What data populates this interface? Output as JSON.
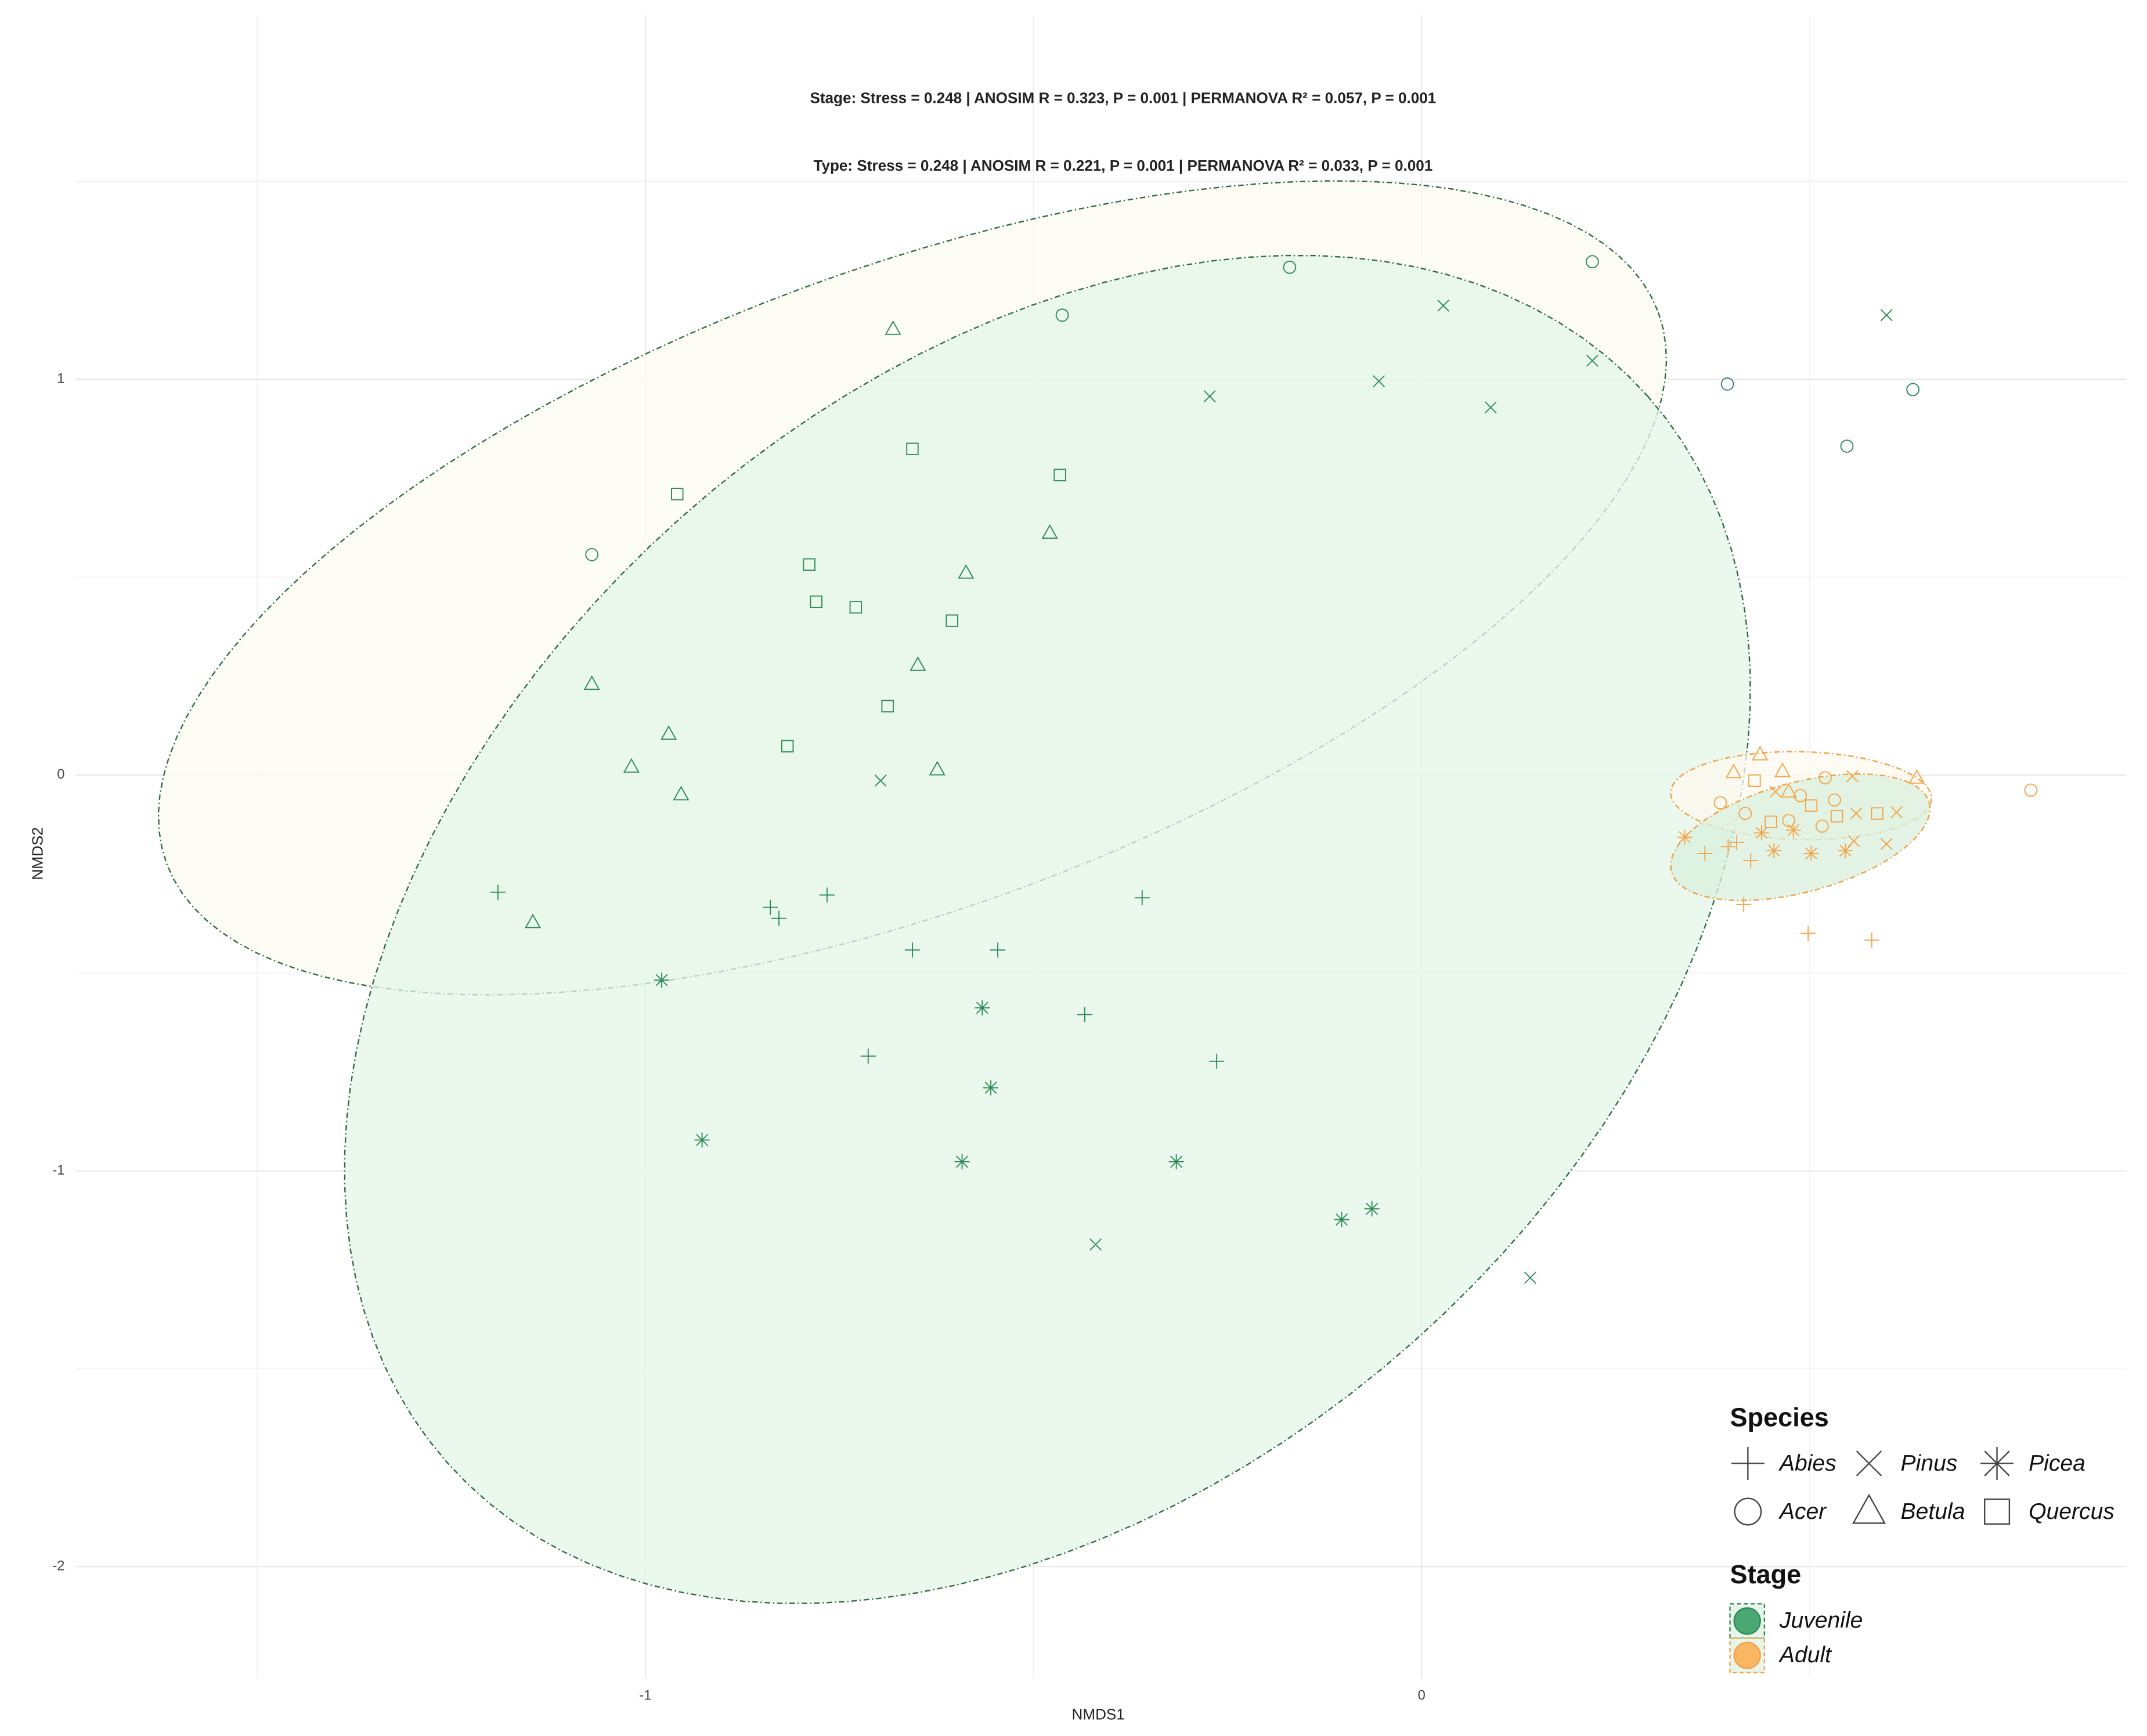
{
  "chart_data": {
    "type": "scatter",
    "title": "Stage: Stress = 0.248 | ANOSIM R = 0.323, P = 0.001 | PERMANOVA R² = 0.057, P = 0.001",
    "subtitle": "Type: Stress = 0.248 | ANOSIM R = 0.221, P = 0.001 | PERMANOVA R² = 0.033, P = 0.001",
    "x_label": "NMDS1",
    "y_label": "NMDS2",
    "xlim": [
      -1.734,
      0.908
    ],
    "ylim": [
      -2.28,
      1.92
    ],
    "xticks": [
      -1,
      0
    ],
    "yticks": [
      -2,
      -1,
      0,
      1
    ],
    "x_minor_grid": [
      -1.5,
      -0.5,
      0.5
    ],
    "y_minor_grid": [
      -1.5,
      -0.5,
      0.5,
      1.5
    ],
    "grid": true,
    "legend_position": "bottom-right",
    "species_legend_title": "Species",
    "stage_legend_title": "Stage",
    "species": [
      {
        "name": "Abies",
        "shape": "plus"
      },
      {
        "name": "Pinus",
        "shape": "cross"
      },
      {
        "name": "Picea",
        "shape": "asterisk"
      },
      {
        "name": "Acer",
        "shape": "circle"
      },
      {
        "name": "Betula",
        "shape": "triangle"
      },
      {
        "name": "Quercus",
        "shape": "square"
      }
    ],
    "stages": [
      {
        "name": "Juvenile",
        "color": "#2e8b57",
        "legend_fill": "#4aa873",
        "points": [
          {
            "x": [
              -1.19,
              -0.839,
              -0.828,
              -0.766,
              -0.656,
              -0.546,
              -0.36,
              -0.434,
              -0.713,
              -0.264
            ],
            "y": [
              -0.296,
              -0.334,
              -0.362,
              -0.303,
              -0.442,
              -0.442,
              -0.31,
              -0.605,
              -0.71,
              -0.723
            ]
          },
          {
            "x": [
              0.028,
              0.22,
              -0.055,
              -0.273,
              0.089,
              -0.697,
              -0.42,
              0.14,
              0.599
            ],
            "y": [
              1.186,
              1.047,
              0.995,
              0.957,
              0.929,
              -0.014,
              -1.186,
              -1.27,
              1.162
            ]
          },
          {
            "x": [
              -0.979,
              -0.566,
              -0.555,
              -0.927,
              -0.592,
              -0.316,
              -0.103,
              -0.064
            ],
            "y": [
              -0.518,
              -0.588,
              -0.79,
              -0.922,
              -0.977,
              -0.977,
              -1.123,
              -1.096
            ]
          },
          {
            "x": [
              -0.17,
              0.22,
              -0.463,
              -1.069,
              0.394,
              0.633,
              0.548
            ],
            "y": [
              1.283,
              1.297,
              1.162,
              0.557,
              0.988,
              0.974,
              0.831
            ]
          },
          {
            "x": [
              -0.681,
              -0.479,
              -0.587,
              -0.649,
              -1.069,
              -0.97,
              -1.018,
              -0.954,
              -0.624,
              -1.145
            ],
            "y": [
              1.127,
              0.612,
              0.511,
              0.278,
              0.23,
              0.104,
              0.021,
              -0.049,
              0.014,
              -0.372
            ]
          },
          {
            "x": [
              -0.656,
              -0.466,
              -0.959,
              -0.789,
              -0.78,
              -0.729,
              -0.605,
              -0.688,
              -0.817
            ],
            "y": [
              0.824,
              0.758,
              0.71,
              0.532,
              0.438,
              0.424,
              0.39,
              0.174,
              0.073
            ]
          }
        ]
      },
      {
        "name": "Adult",
        "color": "#f5a347",
        "legend_fill": "#f9b764",
        "points": [
          {
            "x": [
              0.365,
              0.395,
              0.424,
              0.415,
              0.498,
              0.58,
              0.406
            ],
            "y": [
              -0.198,
              -0.181,
              -0.216,
              -0.327,
              -0.4,
              -0.417,
              -0.17
            ]
          },
          {
            "x": [
              0.555,
              0.56,
              0.612,
              0.599,
              0.557,
              0.456
            ],
            "y": [
              -0.003,
              -0.097,
              -0.094,
              -0.174,
              -0.167,
              -0.042
            ]
          },
          {
            "x": [
              0.339,
              0.454,
              0.502,
              0.546,
              0.479,
              0.438
            ],
            "y": [
              -0.157,
              -0.191,
              -0.198,
              -0.191,
              -0.139,
              -0.146
            ]
          },
          {
            "x": [
              0.385,
              0.417,
              0.488,
              0.532,
              0.52,
              0.785,
              0.473,
              0.516
            ],
            "y": [
              -0.07,
              -0.097,
              -0.052,
              -0.063,
              -0.007,
              -0.038,
              -0.115,
              -0.129
            ]
          },
          {
            "x": [
              0.436,
              0.402,
              0.465,
              0.638,
              0.473
            ],
            "y": [
              0.052,
              0.007,
              0.01,
              -0.007,
              -0.042
            ]
          },
          {
            "x": [
              0.429,
              0.502,
              0.587,
              0.45,
              0.535
            ],
            "y": [
              -0.014,
              -0.077,
              -0.097,
              -0.118,
              -0.104
            ]
          }
        ]
      }
    ],
    "ellipses": [
      {
        "center": [
          -0.656,
          0.473
        ],
        "axis1": [
          0.961,
          0.696
        ],
        "axis2": [
          0.142,
          -0.757
        ],
        "stroke": "#2f6b3f",
        "fill": "#fcfcf2"
      },
      {
        "center": [
          -0.482,
          -0.39
        ],
        "axis1": [
          0.773,
          1.348
        ],
        "axis2": [
          0.472,
          -1.041
        ],
        "stroke": "#2f6b3f",
        "fill": "#e3f6e8"
      },
      {
        "center": [
          0.489,
          -0.052
        ],
        "axis1": [
          0.168,
          -0.007
        ],
        "axis2": [
          0.0,
          -0.111
        ],
        "stroke": "#f0a040",
        "fill": "#fdfaf0"
      },
      {
        "center": [
          0.488,
          -0.157
        ],
        "axis1": [
          0.166,
          0.087
        ],
        "axis2": [
          0.018,
          -0.134
        ],
        "stroke": "#f0a040",
        "fill": "#d9f0de"
      }
    ]
  }
}
